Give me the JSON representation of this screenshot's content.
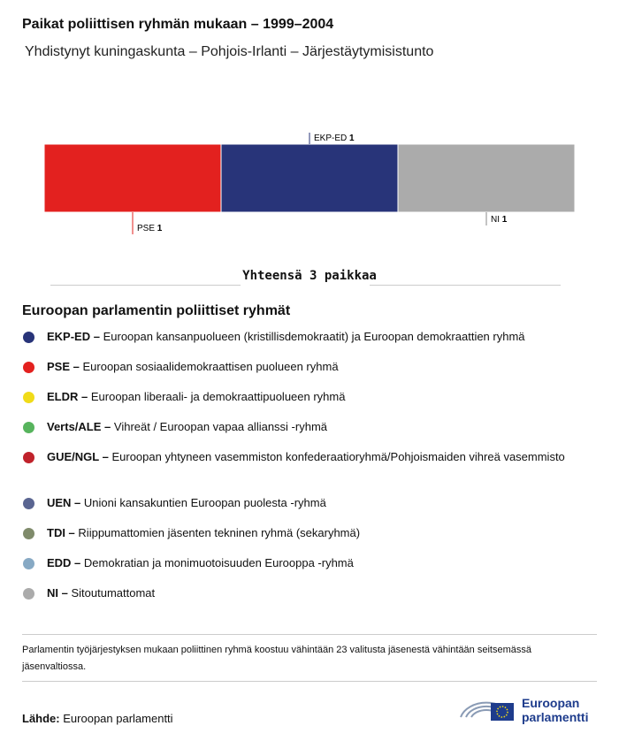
{
  "chart_data": {
    "type": "stacked-bar",
    "title": "Paikat poliittisen ryhmän mukaan – 1999–2004",
    "subtitle": "Yhdistynyt kuningaskunta – Pohjois-Irlanti – Järjestäytymisistunto",
    "series": [
      {
        "name": "PSE",
        "color": "#e3211f",
        "values": [
          1
        ]
      },
      {
        "name": "EKP-ED",
        "color": "#283479",
        "values": [
          1
        ]
      },
      {
        "name": "NI",
        "color": "#ababab",
        "values": [
          1
        ]
      }
    ],
    "total_label": "Yhteensä 3 paikkaa"
  },
  "legend": {
    "title": "Euroopan parlamentin poliittiset ryhmät",
    "items": [
      {
        "abbr": "EKP-ED –",
        "text": "Euroopan kansanpuolueen (kristillisdemokraatit) ja Euroopan demokraattien ryhmä",
        "color": "#283479"
      },
      {
        "abbr": "PSE –",
        "text": "Euroopan sosiaalidemokraattisen puolueen ryhmä",
        "color": "#e3211f"
      },
      {
        "abbr": "ELDR –",
        "text": "Euroopan liberaali- ja demokraattipuolueen ryhmä",
        "color": "#f0db19"
      },
      {
        "abbr": "Verts/ALE –",
        "text": "Vihreät / Euroopan vapaa allianssi -ryhmä",
        "color": "#57b45d"
      },
      {
        "abbr": "GUE/NGL –",
        "text": "Euroopan yhtyneen vasemmiston konfederaatioryhmä/Pohjoismaiden vihreä vasemmisto",
        "color": "#c0222b"
      },
      {
        "abbr": "UEN –",
        "text": "Unioni kansakuntien Euroopan puolesta -ryhmä",
        "color": "#5a6591"
      },
      {
        "abbr": "TDI –",
        "text": "Riippumattomien jäsenten tekninen ryhmä (sekaryhmä)",
        "color": "#7f8b6b"
      },
      {
        "abbr": "EDD –",
        "text": "Demokratian ja monimuotoisuuden Eurooppa -ryhmä",
        "color": "#87a9c4"
      },
      {
        "abbr": "NI –",
        "text": "Sitoutumattomat",
        "color": "#ababab"
      }
    ]
  },
  "footnote": "Parlamentin työjärjestyksen mukaan poliittinen ryhmä koostuu vähintään 23 valitusta jäsenestä vähintään seitsemässä jäsenvaltiossa.",
  "source": {
    "label": "Lähde:",
    "text": "Euroopan parlamentti"
  },
  "logo_text": [
    "Euroopan",
    "parlamentti"
  ]
}
